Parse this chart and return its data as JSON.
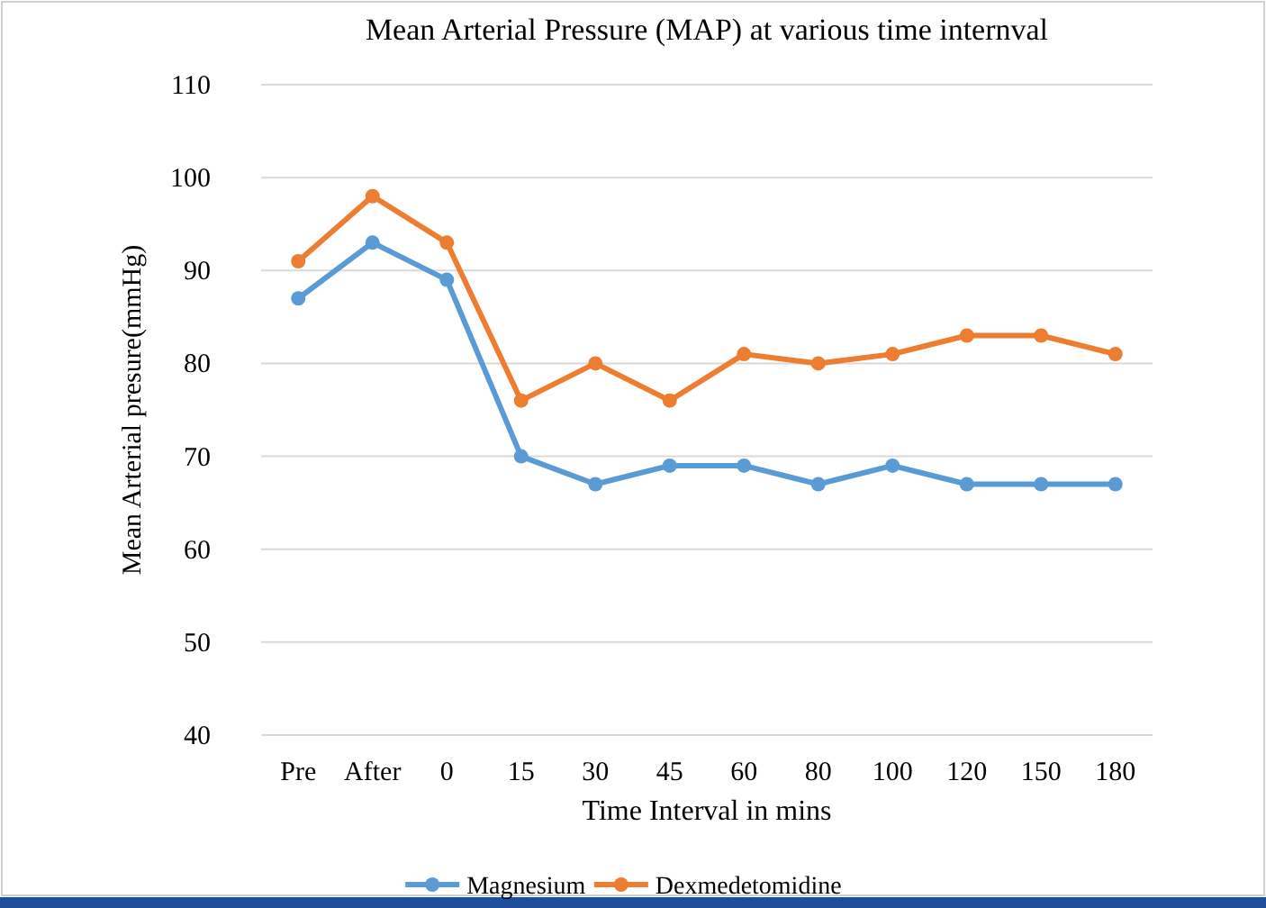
{
  "chart_data": {
    "type": "line",
    "title": "Mean Arterial Pressure (MAP) at various time internval",
    "xlabel": "Time Interval in mins",
    "ylabel": "Mean Arterial presure(mmHg)",
    "categories": [
      "Pre",
      "After",
      "0",
      "15",
      "30",
      "45",
      "60",
      "80",
      "100",
      "120",
      "150",
      "180"
    ],
    "series": [
      {
        "name": "Magnesium",
        "color": "#5b9bd5",
        "values": [
          87,
          93,
          89,
          70,
          67,
          69,
          69,
          67,
          69,
          67,
          67,
          67
        ]
      },
      {
        "name": "Dexmedetomidine",
        "color": "#ed7d31",
        "values": [
          91,
          98,
          93,
          76,
          80,
          76,
          81,
          80,
          81,
          83,
          83,
          81
        ]
      }
    ],
    "ylim": [
      40,
      110
    ],
    "yticks": [
      40,
      50,
      60,
      70,
      80,
      90,
      100,
      110
    ],
    "grid": "y",
    "legend": "bottom",
    "marker": "circle",
    "line_style": "solid"
  }
}
